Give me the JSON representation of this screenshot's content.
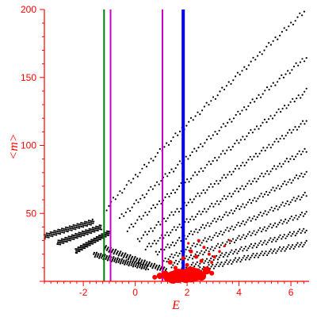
{
  "chart_data": {
    "type": "scatter",
    "xlabel": "E",
    "ylabel": "<m>",
    "xlim": [
      -3.5,
      6.7
    ],
    "ylim": [
      0,
      200
    ],
    "x_ticks": [
      -2,
      0,
      2,
      4,
      6
    ],
    "y_ticks": [
      50,
      100,
      150,
      200
    ],
    "x_tick_labels": [
      "-2",
      "0",
      "2",
      "4",
      "6"
    ],
    "y_tick_labels": [
      "50",
      "100",
      "150",
      "200"
    ],
    "grid": false,
    "legend": "none",
    "vertical_lines": [
      {
        "x": -1.2,
        "color": "#008000"
      },
      {
        "x": -0.95,
        "color": "#cc00cc"
      },
      {
        "x": 1.05,
        "color": "#cc00cc"
      },
      {
        "x": 1.85,
        "color": "#0000ff"
      }
    ],
    "series": [
      {
        "color": "#000000",
        "marker_size": 1.1,
        "note_bands": "dotted bands: each row is [x_start, y_start, x_end, y_end]",
        "bands": [
          [
            -1.1,
            54,
            6.6,
            200
          ],
          [
            -0.6,
            46,
            6.6,
            165
          ],
          [
            -0.3,
            38,
            6.6,
            140
          ],
          [
            0.1,
            30,
            6.6,
            118
          ],
          [
            0.4,
            24,
            6.6,
            97
          ],
          [
            0.8,
            20,
            6.6,
            80
          ],
          [
            1.1,
            15,
            6.6,
            64
          ],
          [
            1.4,
            12,
            6.6,
            50
          ],
          [
            1.8,
            9,
            6.6,
            38
          ],
          [
            2.2,
            7,
            6.6,
            28
          ],
          [
            -3.5,
            33,
            -1.6,
            44
          ],
          [
            -3.0,
            28,
            -1.3,
            40
          ],
          [
            -2.3,
            22,
            -1.0,
            36
          ],
          [
            -1.6,
            20,
            0.5,
            10
          ],
          [
            -1.2,
            25,
            1.2,
            8
          ]
        ]
      },
      {
        "color": "#ff0000",
        "points": [
          [
            1.25,
            3,
            5.5
          ],
          [
            1.45,
            3,
            8
          ],
          [
            1.65,
            4,
            9
          ],
          [
            1.75,
            5,
            7
          ],
          [
            1.95,
            4,
            9
          ],
          [
            2.15,
            5,
            10
          ],
          [
            2.35,
            5,
            8
          ],
          [
            2.55,
            4,
            6
          ],
          [
            0.95,
            4,
            4
          ],
          [
            1.15,
            5,
            5
          ],
          [
            2.75,
            8,
            5
          ],
          [
            2.95,
            6,
            3
          ],
          [
            1.35,
            14,
            3
          ],
          [
            2.15,
            22,
            2.5
          ],
          [
            2.35,
            18,
            2.5
          ],
          [
            2.55,
            15,
            2.5
          ],
          [
            2.85,
            20,
            2
          ],
          [
            2.0,
            12,
            2.5
          ],
          [
            2.65,
            25,
            2
          ],
          [
            3.05,
            18,
            2
          ],
          [
            3.25,
            22,
            1.8
          ],
          [
            1.55,
            10,
            2.5
          ],
          [
            2.45,
            30,
            2
          ],
          [
            1.85,
            17,
            2.5
          ],
          [
            3.45,
            26,
            1.5
          ],
          [
            0.75,
            3,
            3
          ],
          [
            2.25,
            9,
            2.5
          ],
          [
            2.95,
            14,
            2
          ],
          [
            2.05,
            28,
            1.6
          ],
          [
            3.65,
            30,
            1.5
          ]
        ]
      }
    ]
  }
}
